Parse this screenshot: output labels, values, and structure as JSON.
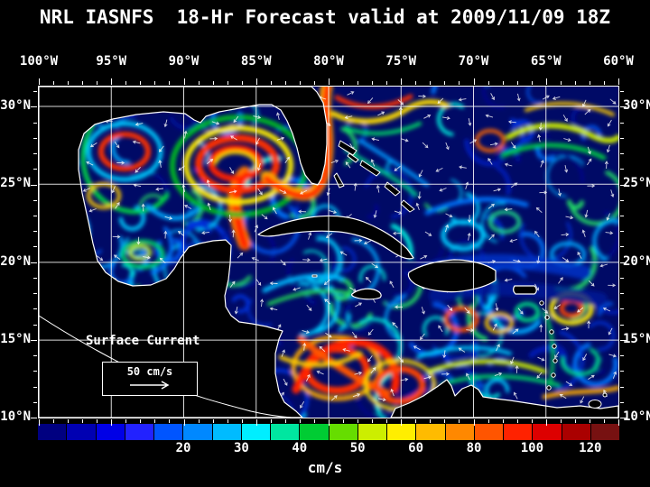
{
  "title": "NRL IASNFS  18-Hr Forecast valid at 2009/11/09 18Z",
  "axes": {
    "lon_labels": [
      "100°W",
      "95°W",
      "90°W",
      "85°W",
      "80°W",
      "75°W",
      "70°W",
      "65°W",
      "60°W"
    ],
    "lat_labels": [
      "30°N",
      "25°N",
      "20°N",
      "15°N",
      "10°N"
    ],
    "lat_positions_pct": [
      6.0,
      29.5,
      53.1,
      76.6,
      100
    ]
  },
  "legend": {
    "label": "Surface Current",
    "scale_label": "50 cm/s"
  },
  "colorbar": {
    "units": "cm/s",
    "tick_labels": [
      "20",
      "30",
      "40",
      "50",
      "60",
      "80",
      "100",
      "120"
    ],
    "tick_positions_pct": [
      25,
      35,
      45,
      55,
      65,
      75,
      85,
      95
    ],
    "colors": [
      "#000080",
      "#0000b2",
      "#0000e6",
      "#2222ff",
      "#0055ff",
      "#0088ff",
      "#00bbff",
      "#00eeff",
      "#00e6a0",
      "#00cc33",
      "#66dd00",
      "#ccee00",
      "#ffee00",
      "#ffbb00",
      "#ff8800",
      "#ff5500",
      "#ff2200",
      "#dd0000",
      "#aa0000",
      "#771111"
    ]
  },
  "chart_data": {
    "type": "heatmap",
    "title": "NRL IASNFS  18-Hr Forecast valid at 2009/11/09 18Z",
    "variable": "Surface Current speed",
    "units": "cm/s",
    "x_ticks": [
      "100°W",
      "95°W",
      "90°W",
      "85°W",
      "80°W",
      "75°W",
      "70°W",
      "65°W",
      "60°W"
    ],
    "y_ticks": [
      "30°N",
      "25°N",
      "20°N",
      "15°N",
      "10°N"
    ],
    "color_levels": [
      20,
      30,
      40,
      50,
      60,
      80,
      100,
      120
    ],
    "vector_reference": "50 cm/s",
    "grid": true,
    "legend_position": "bottom"
  }
}
